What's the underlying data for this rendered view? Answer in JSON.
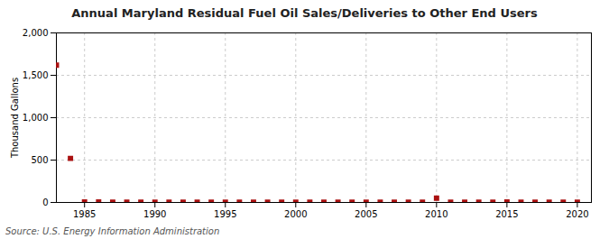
{
  "chart_data": {
    "type": "scatter",
    "title": "Annual Maryland Residual Fuel Oil Sales/Deliveries to Other End Users",
    "ylabel": "Thousand Gallons",
    "source": "Source: U.S. Energy Information Administration",
    "x": [
      1983,
      1984,
      1985,
      1986,
      1987,
      1988,
      1989,
      1990,
      1991,
      1992,
      1993,
      1994,
      1995,
      1996,
      1997,
      1998,
      1999,
      2000,
      2001,
      2002,
      2003,
      2004,
      2005,
      2006,
      2007,
      2008,
      2009,
      2010,
      2011,
      2012,
      2013,
      2014,
      2015,
      2016,
      2017,
      2018,
      2019,
      2020
    ],
    "values": [
      1620,
      520,
      5,
      5,
      4,
      4,
      4,
      3,
      3,
      3,
      3,
      3,
      3,
      3,
      3,
      3,
      3,
      3,
      3,
      3,
      3,
      3,
      3,
      3,
      3,
      3,
      3,
      50,
      3,
      3,
      3,
      3,
      5,
      3,
      3,
      3,
      3,
      3
    ],
    "color": "#aa1111",
    "marker": "square",
    "xlim": [
      1983,
      2021
    ],
    "ylim": [
      0,
      2000
    ],
    "xticks": [
      1985,
      1990,
      1995,
      2000,
      2005,
      2010,
      2015,
      2020
    ],
    "yticks": [
      0,
      500,
      {
        "value": 1000,
        "label": "1,000"
      },
      {
        "value": 1500,
        "label": "1,500"
      },
      {
        "value": 2000,
        "label": "2,000"
      }
    ],
    "grid": true
  }
}
